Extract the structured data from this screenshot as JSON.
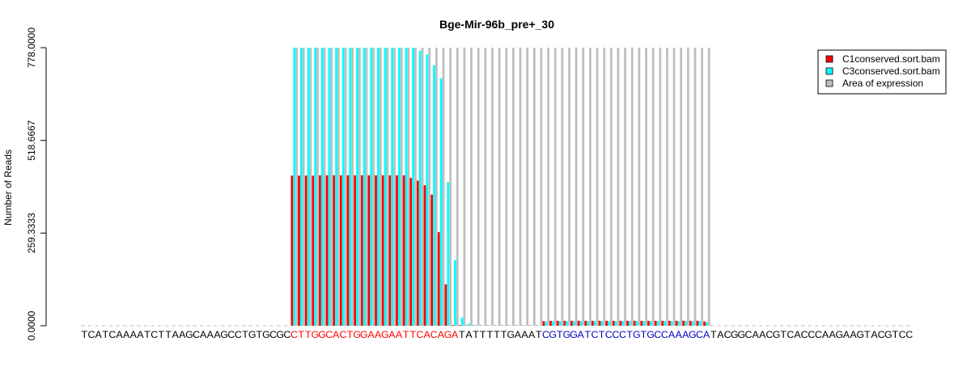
{
  "chart_data": {
    "type": "bar",
    "title": "Bge-Mir-96b_pre+_30",
    "ylabel": "Number of Reads",
    "xlabel": "",
    "ylim": [
      0,
      778
    ],
    "yticks": [
      "0.0000",
      "259.3333",
      "518.6667",
      "778.0000"
    ],
    "ytick_values": [
      0,
      259.3333,
      518.6667,
      778
    ],
    "sequence": "TCATCAAAATCTTAAGCAAAGCCTGTGCGCCTTGGCACTGGAAGAATTCACAGATATTTTTGAAATCGTGGATCTCCCTGTGCCAAAGCATACGGCAACGTCACCCAAGAAGTACGTCC",
    "sequence_segments": [
      {
        "text": "TCATCAAAATCTTAAGCAAAGCCTGTGCGC",
        "color": "#000000"
      },
      {
        "text": "CTTGGCACTGGAAGAATTCACAGA",
        "color": "#ff0000"
      },
      {
        "text": "TATTTTTGAAAT",
        "color": "#000000"
      },
      {
        "text": "CGTGGATCTCCCTGTGCCAAAGCA",
        "color": "#0000c0"
      },
      {
        "text": "TACGGCAACGTCACCCAAGAAGTACGTCC",
        "color": "#000000"
      }
    ],
    "legend": {
      "position": "top-right",
      "entries": [
        {
          "label": "C1conserved.sort.bam",
          "color": "#ff0000"
        },
        {
          "label": "C3conserved.sort.bam",
          "color": "#00ffff"
        },
        {
          "label": "Area of expression",
          "color": "#bebebe"
        }
      ]
    },
    "area_of_expression": {
      "start_index": 30,
      "end_index": 89,
      "value": 778
    },
    "series": [
      {
        "name": "C1conserved.sort.bam",
        "color": "#ff0000",
        "values": [
          0,
          0,
          0,
          0,
          0,
          0,
          0,
          0,
          0,
          0,
          0,
          0,
          0,
          0,
          0,
          0,
          0,
          0,
          0,
          0,
          0,
          0,
          0,
          0,
          0,
          0,
          0,
          0,
          0,
          0,
          420,
          420,
          420,
          420,
          421,
          421,
          421,
          421,
          421,
          421,
          421,
          421,
          421,
          421,
          421,
          421,
          421,
          414,
          406,
          393,
          367,
          262,
          116,
          2,
          2,
          1,
          1,
          1,
          1,
          1,
          1,
          1,
          1,
          1,
          1,
          1,
          13,
          14,
          14,
          14,
          14,
          14,
          14,
          14,
          14,
          14,
          14,
          14,
          14,
          14,
          14,
          14,
          14,
          14,
          14,
          14,
          14,
          14,
          14,
          12,
          0,
          0,
          0,
          0,
          0,
          0,
          0,
          0,
          0,
          0,
          0,
          0,
          0,
          0,
          0,
          0,
          0,
          0,
          0,
          0,
          0,
          0,
          0,
          0,
          0,
          0,
          0,
          0,
          0
        ]
      },
      {
        "name": "C3conserved.sort.bam",
        "color": "#00ffff",
        "values": [
          0,
          0,
          0,
          0,
          0,
          0,
          0,
          0,
          0,
          0,
          0,
          0,
          0,
          0,
          0,
          0,
          0,
          0,
          0,
          0,
          0,
          0,
          0,
          0,
          0,
          0,
          0,
          0,
          0,
          0,
          778,
          778,
          778,
          778,
          778,
          778,
          778,
          778,
          778,
          778,
          778,
          778,
          778,
          778,
          778,
          778,
          778,
          778,
          770,
          759,
          729,
          692,
          402,
          184,
          23,
          6,
          2,
          1,
          1,
          1,
          1,
          1,
          1,
          1,
          1,
          1,
          12,
          13,
          13,
          13,
          13,
          13,
          13,
          13,
          13,
          13,
          13,
          13,
          13,
          13,
          13,
          13,
          13,
          13,
          13,
          13,
          13,
          13,
          13,
          10,
          0,
          0,
          0,
          0,
          0,
          0,
          0,
          0,
          0,
          0,
          0,
          0,
          0,
          0,
          0,
          0,
          0,
          0,
          0,
          0,
          0,
          0,
          0,
          0,
          0,
          0,
          0,
          0,
          0
        ]
      }
    ]
  }
}
